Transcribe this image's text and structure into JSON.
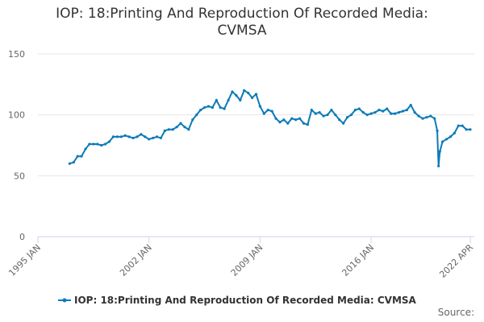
{
  "chart_data": {
    "type": "line",
    "title": "IOP: 18:Printing And Reproduction Of Recorded Media: CVMSA",
    "x": [
      "1997 JAN",
      "1997 APR",
      "1997 JUL",
      "1997 OCT",
      "1998 JAN",
      "1998 APR",
      "1998 JUL",
      "1998 OCT",
      "1999 JAN",
      "1999 APR",
      "1999 JUL",
      "1999 OCT",
      "2000 JAN",
      "2000 APR",
      "2000 JUL",
      "2000 OCT",
      "2001 JAN",
      "2001 APR",
      "2001 JUL",
      "2001 OCT",
      "2002 JAN",
      "2002 APR",
      "2002 JUL",
      "2002 OCT",
      "2003 JAN",
      "2003 APR",
      "2003 JUL",
      "2003 OCT",
      "2004 JAN",
      "2004 APR",
      "2004 JUL",
      "2004 OCT",
      "2005 JAN",
      "2005 APR",
      "2005 JUL",
      "2005 OCT",
      "2006 JAN",
      "2006 APR",
      "2006 JUL",
      "2006 OCT",
      "2007 JAN",
      "2007 APR",
      "2007 JUL",
      "2007 OCT",
      "2008 JAN",
      "2008 APR",
      "2008 JUL",
      "2008 OCT",
      "2009 JAN",
      "2009 APR",
      "2009 JUL",
      "2009 OCT",
      "2010 JAN",
      "2010 APR",
      "2010 JUL",
      "2010 OCT",
      "2011 JAN",
      "2011 APR",
      "2011 JUL",
      "2011 OCT",
      "2012 JAN",
      "2012 APR",
      "2012 JUL",
      "2012 OCT",
      "2013 JAN",
      "2013 APR",
      "2013 JUL",
      "2013 OCT",
      "2014 JAN",
      "2014 APR",
      "2014 JUL",
      "2014 OCT",
      "2015 JAN",
      "2015 APR",
      "2015 JUL",
      "2015 OCT",
      "2016 JAN",
      "2016 APR",
      "2016 JUL",
      "2016 OCT",
      "2017 JAN",
      "2017 APR",
      "2017 JUL",
      "2017 OCT",
      "2018 JAN",
      "2018 APR",
      "2018 JUL",
      "2018 OCT",
      "2019 JAN",
      "2019 APR",
      "2019 JUL",
      "2019 OCT",
      "2020 JAN",
      "2020 MAR",
      "2020 APR",
      "2020 MAY",
      "2020 JUL",
      "2020 OCT",
      "2021 JAN",
      "2021 APR",
      "2021 JUL",
      "2021 OCT",
      "2022 JAN",
      "2022 APR"
    ],
    "series": [
      {
        "name": "IOP: 18:Printing And Reproduction Of Recorded Media: CVMSA",
        "color": "#0b7bb8",
        "values": [
          60,
          61,
          66,
          66,
          72,
          76,
          76,
          76,
          75,
          76,
          78,
          82,
          82,
          82,
          83,
          82,
          81,
          82,
          84,
          82,
          80,
          81,
          82,
          81,
          87,
          88,
          88,
          90,
          93,
          90,
          88,
          96,
          100,
          104,
          106,
          107,
          106,
          112,
          106,
          105,
          112,
          119,
          116,
          112,
          120,
          118,
          114,
          117,
          107,
          101,
          104,
          103,
          97,
          94,
          96,
          93,
          97,
          96,
          97,
          93,
          92,
          104,
          101,
          102,
          99,
          100,
          104,
          100,
          96,
          93,
          98,
          100,
          104,
          105,
          102,
          100,
          101,
          102,
          104,
          103,
          105,
          101,
          101,
          102,
          103,
          104,
          108,
          102,
          99,
          97,
          98,
          99,
          97,
          87,
          58,
          70,
          78,
          80,
          82,
          85,
          91,
          91,
          88,
          88
        ]
      }
    ],
    "xlim": [
      "1995 JAN",
      "2022 APR"
    ],
    "xticks": [
      "1995 JAN",
      "2002 JAN",
      "2009 JAN",
      "2016 JAN",
      "2022 APR"
    ],
    "ylim": [
      0,
      150
    ],
    "yticks": [
      0,
      50,
      100,
      150
    ],
    "grid": true,
    "source": "Source:"
  }
}
